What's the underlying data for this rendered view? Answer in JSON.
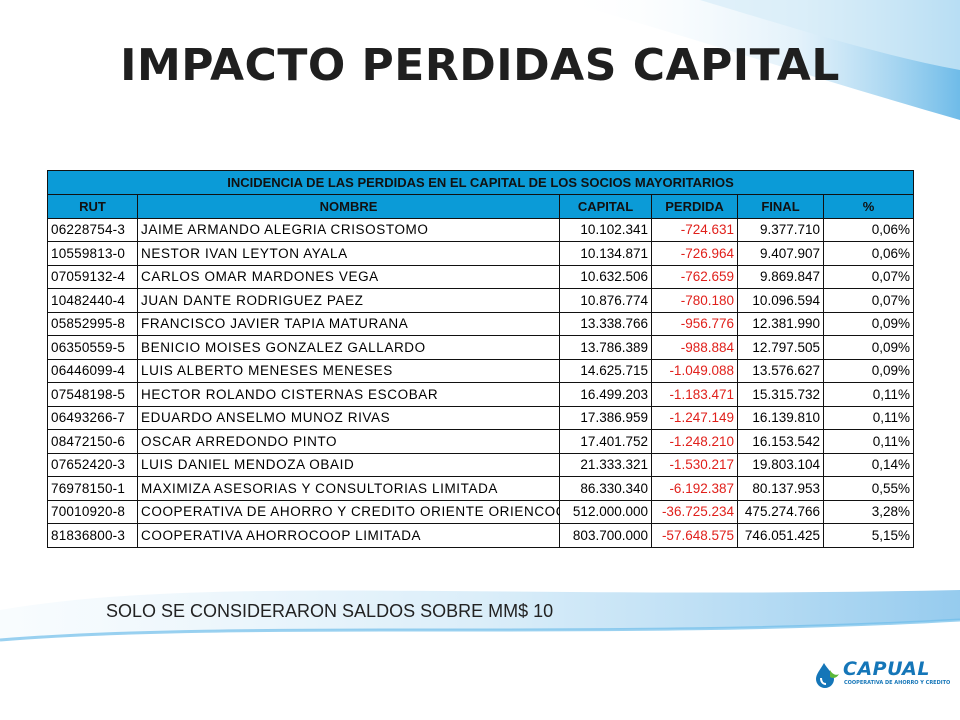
{
  "title": "IMPACTO PERDIDAS CAPITAL",
  "table": {
    "caption": "INCIDENCIA DE LAS PERDIDAS EN EL CAPITAL DE LOS SOCIOS MAYORITARIOS",
    "headers": [
      "RUT",
      "NOMBRE",
      "CAPITAL",
      "PERDIDA",
      "FINAL",
      "%"
    ],
    "rows": [
      {
        "rut": "06228754-3",
        "nombre": "JAIME ARMANDO ALEGRIA CRISOSTOMO",
        "capital": "10.102.341",
        "perdida": "-724.631",
        "final": "9.377.710",
        "pct": "0,06%"
      },
      {
        "rut": "10559813-0",
        "nombre": "NESTOR IVAN LEYTON AYALA",
        "capital": "10.134.871",
        "perdida": "-726.964",
        "final": "9.407.907",
        "pct": "0,06%"
      },
      {
        "rut": "07059132-4",
        "nombre": "CARLOS OMAR MARDONES VEGA",
        "capital": "10.632.506",
        "perdida": "-762.659",
        "final": "9.869.847",
        "pct": "0,07%"
      },
      {
        "rut": "10482440-4",
        "nombre": "JUAN DANTE RODRIGUEZ PAEZ",
        "capital": "10.876.774",
        "perdida": "-780.180",
        "final": "10.096.594",
        "pct": "0,07%"
      },
      {
        "rut": "05852995-8",
        "nombre": "FRANCISCO JAVIER TAPIA MATURANA",
        "capital": "13.338.766",
        "perdida": "-956.776",
        "final": "12.381.990",
        "pct": "0,09%"
      },
      {
        "rut": "06350559-5",
        "nombre": "BENICIO MOISES GONZALEZ GALLARDO",
        "capital": "13.786.389",
        "perdida": "-988.884",
        "final": "12.797.505",
        "pct": "0,09%"
      },
      {
        "rut": "06446099-4",
        "nombre": "LUIS ALBERTO MENESES MENESES",
        "capital": "14.625.715",
        "perdida": "-1.049.088",
        "final": "13.576.627",
        "pct": "0,09%"
      },
      {
        "rut": "07548198-5",
        "nombre": "HECTOR ROLANDO CISTERNAS ESCOBAR",
        "capital": "16.499.203",
        "perdida": "-1.183.471",
        "final": "15.315.732",
        "pct": "0,11%"
      },
      {
        "rut": "06493266-7",
        "nombre": "EDUARDO ANSELMO MUNOZ RIVAS",
        "capital": "17.386.959",
        "perdida": "-1.247.149",
        "final": "16.139.810",
        "pct": "0,11%"
      },
      {
        "rut": "08472150-6",
        "nombre": "OSCAR ARREDONDO PINTO",
        "capital": "17.401.752",
        "perdida": "-1.248.210",
        "final": "16.153.542",
        "pct": "0,11%"
      },
      {
        "rut": "07652420-3",
        "nombre": "LUIS DANIEL MENDOZA OBAID",
        "capital": "21.333.321",
        "perdida": "-1.530.217",
        "final": "19.803.104",
        "pct": "0,14%"
      },
      {
        "rut": "76978150-1",
        "nombre": "MAXIMIZA ASESORIAS Y CONSULTORIAS LIMITADA",
        "capital": "86.330.340",
        "perdida": "-6.192.387",
        "final": "80.137.953",
        "pct": "0,55%"
      },
      {
        "rut": "70010920-8",
        "nombre": "COOPERATIVA DE AHORRO Y CREDITO ORIENTE  ORIENCOOP",
        "capital": "512.000.000",
        "perdida": "-36.725.234",
        "final": "475.274.766",
        "pct": "3,28%"
      },
      {
        "rut": "81836800-3",
        "nombre": "COOPERATIVA AHORROCOOP LIMITADA",
        "capital": "803.700.000",
        "perdida": "-57.648.575",
        "final": "746.051.425",
        "pct": "5,15%"
      }
    ]
  },
  "footnote": "SOLO SE CONSIDERARON SALDOS SOBRE MM$ 10",
  "logo": {
    "name": "CAPUAL",
    "tagline": "COOPERATIVA DE AHORRO Y CREDITO"
  },
  "colors": {
    "header_bg": "#0b9bd7",
    "negative": "#e0201b",
    "brand": "#1576b8"
  }
}
